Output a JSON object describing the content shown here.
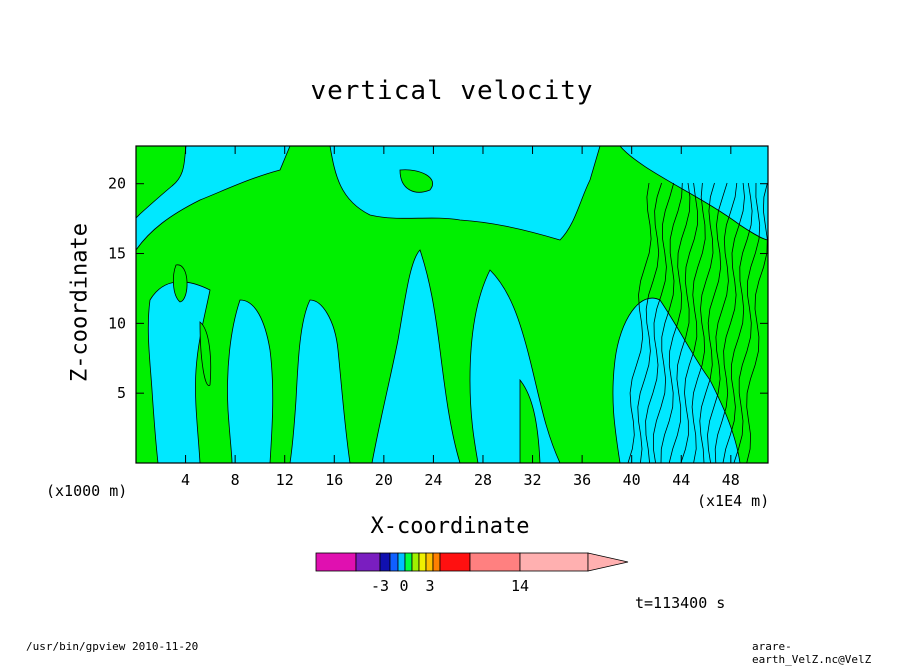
{
  "chart_data": {
    "type": "contour",
    "title": "vertical velocity",
    "xlabel": "X-coordinate",
    "ylabel": "Z-coordinate",
    "x_unit_left": "(x1000 m)",
    "x_unit_right": "(x1E4 m)",
    "x_ticks": [
      "4",
      "8",
      "12",
      "16",
      "20",
      "24",
      "28",
      "32",
      "36",
      "40",
      "44",
      "48"
    ],
    "x_tick_values": [
      4,
      8,
      12,
      16,
      20,
      24,
      28,
      32,
      36,
      40,
      44,
      48
    ],
    "y_ticks": [
      "5",
      "10",
      "15",
      "20"
    ],
    "y_tick_values": [
      5,
      10,
      15,
      20
    ],
    "xlim": [
      0,
      51
    ],
    "ylim": [
      0,
      22.7
    ],
    "time_label": "t=113400 s",
    "colorbar": {
      "tick_labels": [
        "-3",
        "0",
        "3",
        "14"
      ],
      "colors": [
        "#e010b0",
        "#7a1ec0",
        "#1010b0",
        "#1060ff",
        "#00c0ff",
        "#00ff40",
        "#a0f000",
        "#f0f000",
        "#ffc000",
        "#ff8000",
        "#ff1010",
        "#ff8080",
        "#ffb0b0"
      ]
    },
    "colors": {
      "negative_fill": "#00e8ff",
      "positive_fill": "#00f000",
      "contour_line": "#000000"
    },
    "footer_left": "/usr/bin/gpview   2010-11-20",
    "footer_right": "arare-earth_VelZ.nc@VelZ"
  }
}
